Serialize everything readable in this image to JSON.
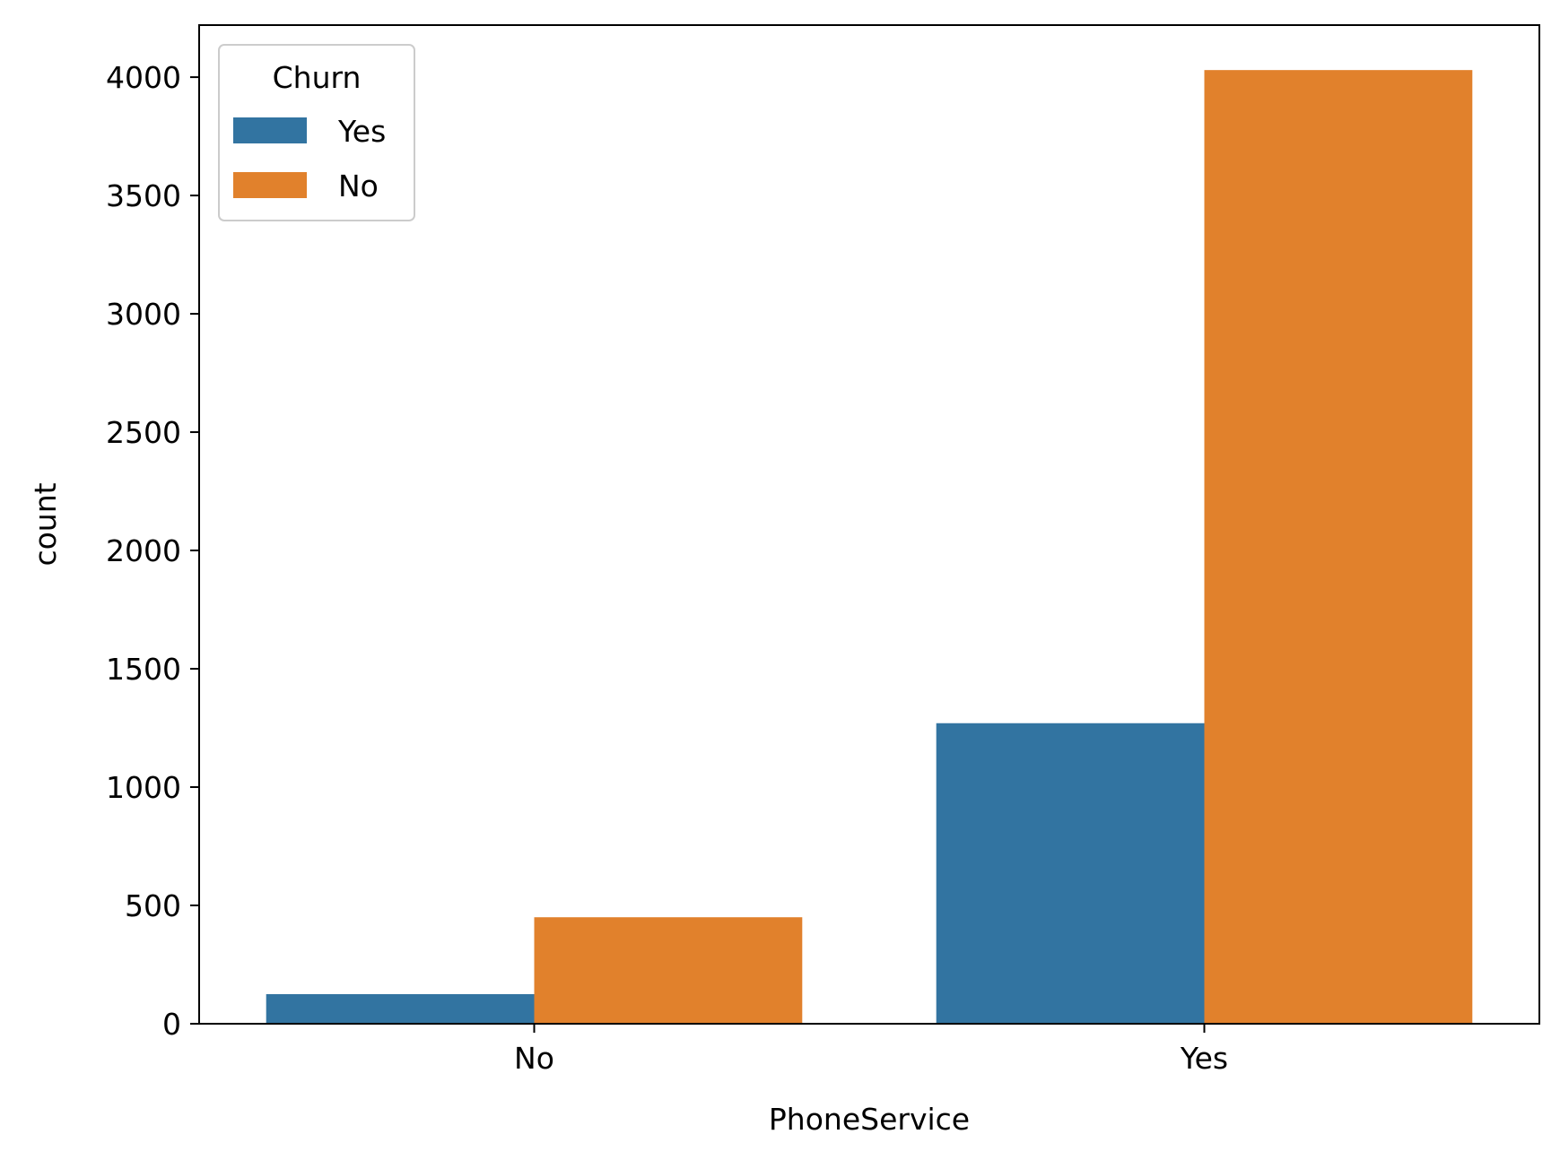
{
  "chart_data": {
    "type": "bar",
    "title": "",
    "xlabel": "PhoneService",
    "ylabel": "count",
    "categories": [
      "No",
      "Yes"
    ],
    "series": [
      {
        "name": "Yes",
        "color": "#3274a1",
        "values": [
          125,
          1270
        ]
      },
      {
        "name": "No",
        "color": "#e1812c",
        "values": [
          450,
          4030
        ]
      }
    ],
    "ylim": [
      0,
      4220
    ],
    "yticks": [
      0,
      500,
      1000,
      1500,
      2000,
      2500,
      3000,
      3500,
      4000
    ],
    "grid": false,
    "legend": {
      "title": "Churn",
      "placement": "top-left"
    }
  }
}
